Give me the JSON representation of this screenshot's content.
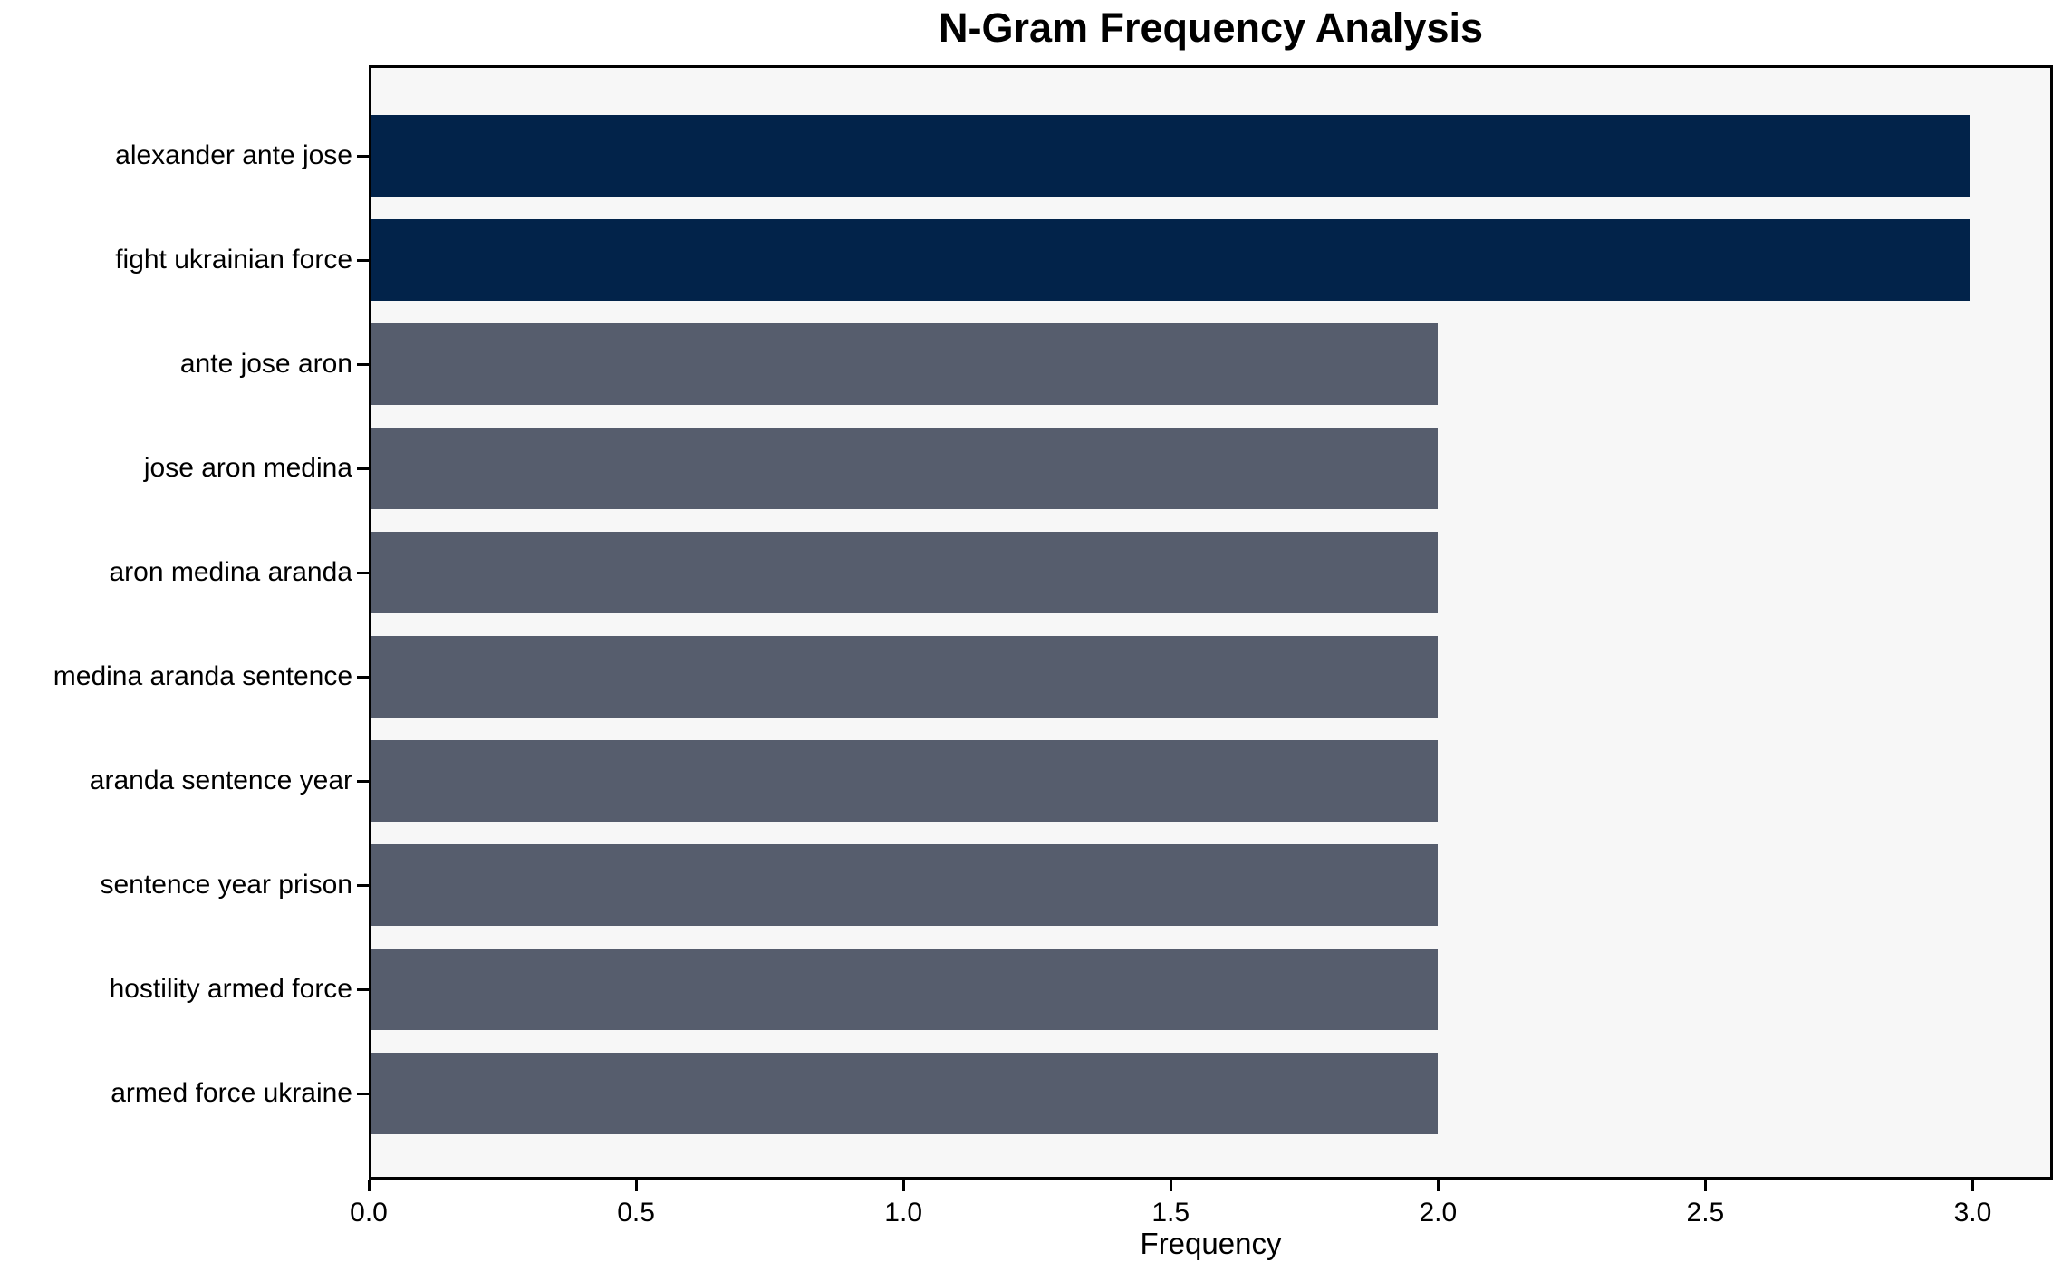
{
  "chart_data": {
    "type": "bar",
    "orientation": "horizontal",
    "title": "N-Gram Frequency Analysis",
    "xlabel": "Frequency",
    "ylabel": "",
    "categories": [
      "alexander ante jose",
      "fight ukrainian force",
      "ante jose aron",
      "jose aron medina",
      "aron medina aranda",
      "medina aranda sentence",
      "aranda sentence year",
      "sentence year prison",
      "hostility armed force",
      "armed force ukraine"
    ],
    "values": [
      3,
      3,
      2,
      2,
      2,
      2,
      2,
      2,
      2,
      2
    ],
    "bar_colors": [
      "#02234a",
      "#02234a",
      "#565d6d",
      "#565d6d",
      "#565d6d",
      "#565d6d",
      "#565d6d",
      "#565d6d",
      "#565d6d",
      "#565d6d"
    ],
    "xticks": [
      0.0,
      0.5,
      1.0,
      1.5,
      2.0,
      2.5,
      3.0
    ],
    "xtick_labels": [
      "0.0",
      "0.5",
      "1.0",
      "1.5",
      "2.0",
      "2.5",
      "3.0"
    ],
    "xlim": [
      0,
      3.15
    ],
    "grid": false,
    "legend": false,
    "colors": {
      "highlight": "#02234a",
      "base": "#565d6d",
      "plot_background": "#f7f7f7",
      "figure_background": "#ffffff",
      "spine": "#000000",
      "text": "#000000"
    }
  }
}
